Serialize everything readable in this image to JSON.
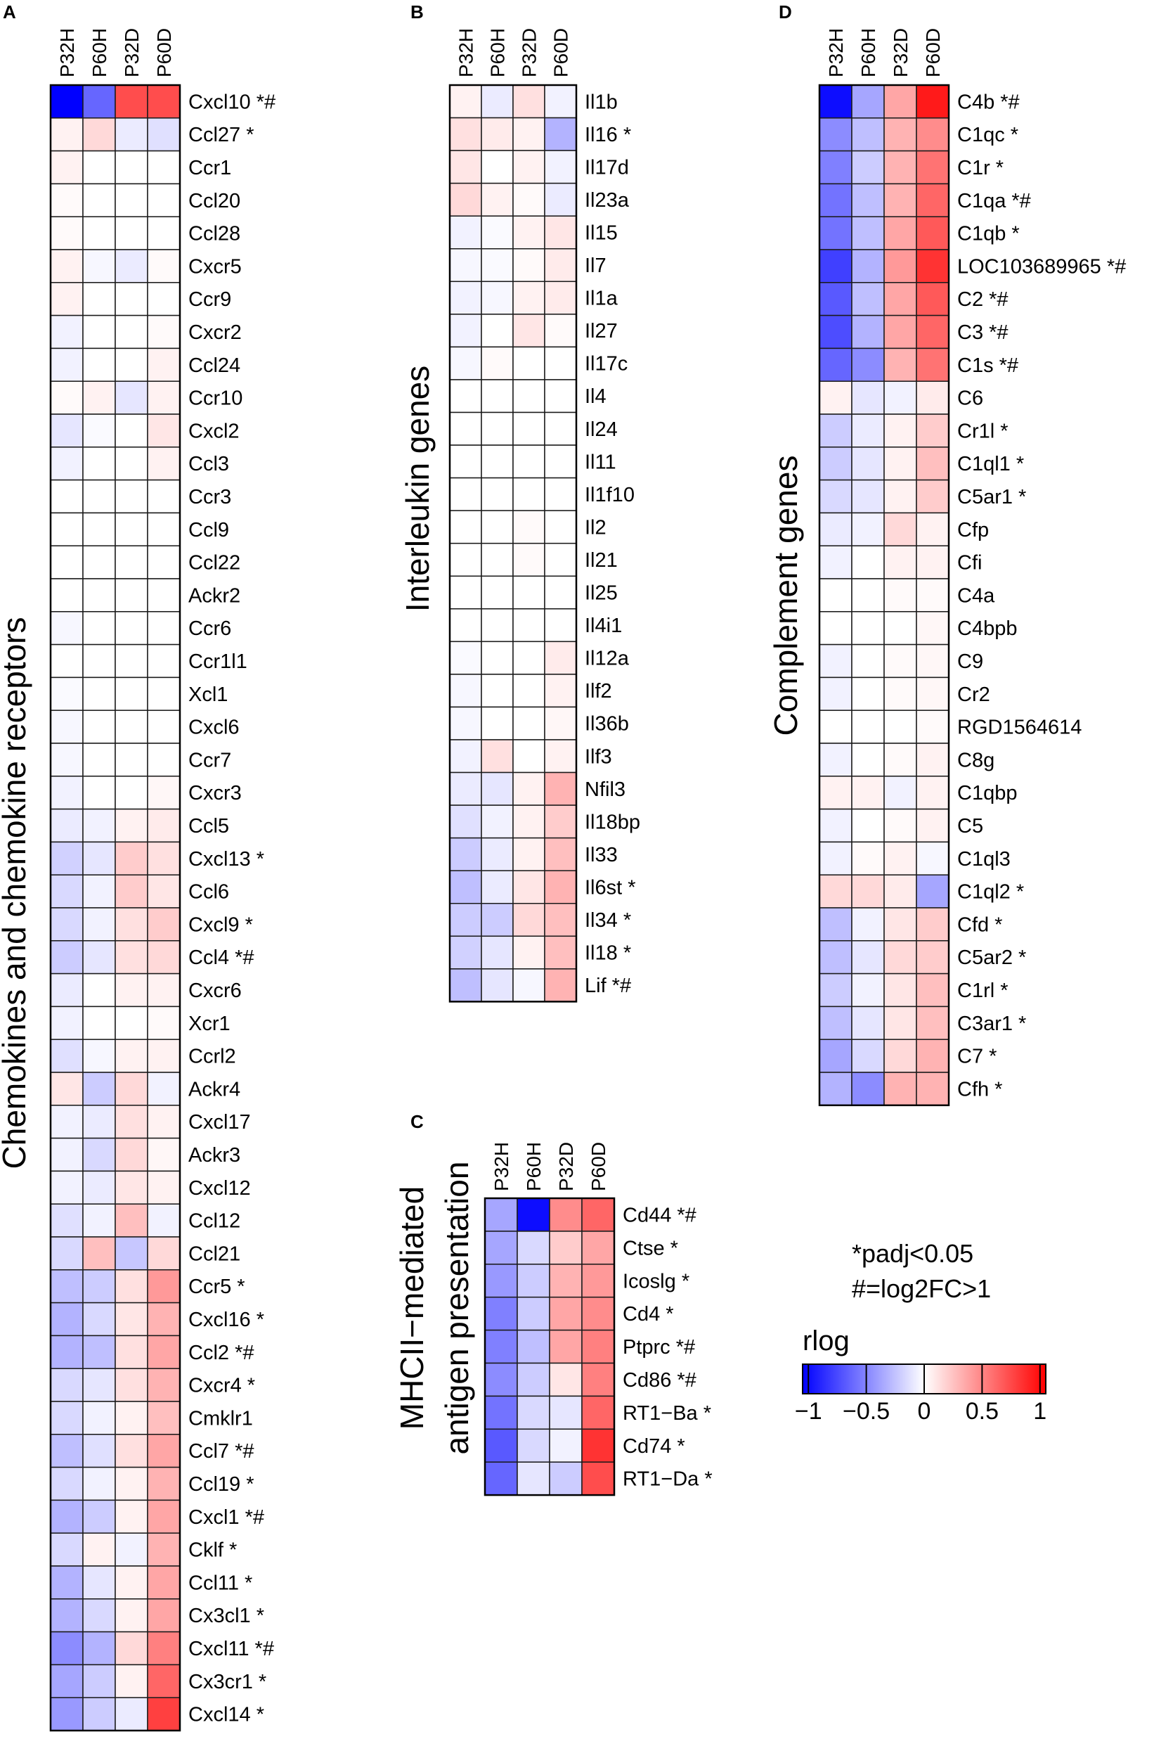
{
  "figure": {
    "legend": {
      "title": "rlog",
      "ticks": [
        "−1",
        "−0.5",
        "0",
        "0.5",
        "1"
      ],
      "range": [
        -1.05,
        1.05
      ],
      "tick_values": [
        -1,
        -0.5,
        0,
        0.5,
        1
      ],
      "colors": {
        "low": "#0000ff",
        "mid": "#ffffff",
        "high": "#ff0000"
      }
    },
    "notes": [
      "*padj<0.05",
      "#=log2FC>1"
    ]
  },
  "chart_data": [
    {
      "type": "heatmap",
      "panel": "A",
      "title": "Chemokines and chemokine receptors",
      "columns": [
        "P32H",
        "P60H",
        "P32D",
        "P60D"
      ],
      "rows": [
        "Cxcl10 *#",
        "Ccl27 *",
        "Ccr1",
        "Ccl20",
        "Ccl28",
        "Cxcr5",
        "Ccr9",
        "Cxcr2",
        "Ccl24",
        "Ccr10",
        "Cxcl2",
        "Ccl3",
        "Ccr3",
        "Ccl9",
        "Ccl22",
        "Ackr2",
        "Ccr6",
        "Ccr1l1",
        "Xcl1",
        "Cxcl6",
        "Ccr7",
        "Cxcr3",
        "Ccl5",
        "Cxcl13 *",
        "Ccl6",
        "Cxcl9 *",
        "Ccl4 *#",
        "Cxcr6",
        "Xcr1",
        "Ccrl2",
        "Ackr4",
        "Cxcl17",
        "Ackr3",
        "Cxcl12",
        "Ccl12",
        "Ccl21",
        "Ccr5 *",
        "Cxcl16 *",
        "Ccl2 *#",
        "Cxcr4 *",
        "Cmklr1",
        "Ccl7 *#",
        "Ccl19 *",
        "Cxcl1 *#",
        "Cklf *",
        "Ccl11 *",
        "Cx3cl1 *",
        "Cxcl11 *#",
        "Cx3cr1 *",
        "Cxcl14 *"
      ],
      "values": [
        [
          -1.0,
          -0.6,
          0.7,
          0.7
        ],
        [
          0.05,
          0.15,
          -0.08,
          -0.12
        ],
        [
          0.05,
          0.0,
          0.0,
          0.0
        ],
        [
          0.02,
          0.0,
          0.0,
          0.0
        ],
        [
          0.02,
          0.0,
          0.0,
          0.0
        ],
        [
          0.05,
          -0.03,
          -0.08,
          0.02
        ],
        [
          0.05,
          0.0,
          0.0,
          0.0
        ],
        [
          -0.05,
          0.0,
          0.0,
          0.02
        ],
        [
          -0.05,
          0.0,
          0.0,
          0.05
        ],
        [
          0.02,
          0.05,
          -0.1,
          0.05
        ],
        [
          -0.1,
          -0.02,
          0.0,
          0.1
        ],
        [
          -0.05,
          0.0,
          0.0,
          0.05
        ],
        [
          0.0,
          0.0,
          0.0,
          0.0
        ],
        [
          0.0,
          0.0,
          0.0,
          0.0
        ],
        [
          0.0,
          0.0,
          0.0,
          0.0
        ],
        [
          0.0,
          0.0,
          0.0,
          0.0
        ],
        [
          -0.03,
          0.0,
          0.0,
          0.0
        ],
        [
          0.0,
          0.0,
          0.0,
          0.0
        ],
        [
          -0.02,
          0.0,
          0.0,
          0.0
        ],
        [
          -0.03,
          0.0,
          0.0,
          0.0
        ],
        [
          -0.03,
          0.0,
          0.0,
          0.0
        ],
        [
          -0.05,
          0.0,
          0.0,
          0.03
        ],
        [
          -0.08,
          -0.05,
          0.05,
          0.08
        ],
        [
          -0.18,
          -0.1,
          0.2,
          0.12
        ],
        [
          -0.15,
          -0.05,
          0.2,
          0.1
        ],
        [
          -0.15,
          -0.05,
          0.12,
          0.2
        ],
        [
          -0.2,
          -0.1,
          0.12,
          0.15
        ],
        [
          -0.08,
          0.0,
          0.05,
          0.05
        ],
        [
          -0.05,
          0.0,
          0.0,
          0.02
        ],
        [
          -0.12,
          -0.03,
          0.05,
          0.05
        ],
        [
          0.1,
          -0.2,
          0.15,
          -0.05
        ],
        [
          -0.05,
          -0.08,
          0.12,
          0.05
        ],
        [
          -0.05,
          -0.15,
          0.15,
          0.03
        ],
        [
          -0.05,
          -0.08,
          0.1,
          0.05
        ],
        [
          -0.12,
          -0.05,
          0.25,
          -0.05
        ],
        [
          -0.15,
          0.25,
          -0.22,
          0.15
        ],
        [
          -0.25,
          -0.2,
          0.12,
          0.4
        ],
        [
          -0.3,
          -0.15,
          0.1,
          0.3
        ],
        [
          -0.3,
          -0.25,
          0.12,
          0.35
        ],
        [
          -0.15,
          -0.1,
          0.12,
          0.3
        ],
        [
          -0.15,
          -0.05,
          0.05,
          0.25
        ],
        [
          -0.25,
          -0.12,
          0.12,
          0.35
        ],
        [
          -0.15,
          -0.05,
          0.05,
          0.3
        ],
        [
          -0.3,
          -0.2,
          0.05,
          0.35
        ],
        [
          -0.15,
          0.05,
          -0.05,
          0.3
        ],
        [
          -0.3,
          -0.1,
          0.05,
          0.35
        ],
        [
          -0.3,
          -0.15,
          0.05,
          0.35
        ],
        [
          -0.45,
          -0.3,
          0.15,
          0.5
        ],
        [
          -0.35,
          -0.2,
          0.05,
          0.6
        ],
        [
          -0.4,
          -0.2,
          -0.08,
          0.75
        ]
      ]
    },
    {
      "type": "heatmap",
      "panel": "B",
      "title": "Interleukin genes",
      "columns": [
        "P32H",
        "P60H",
        "P32D",
        "P60D"
      ],
      "rows": [
        "Il1b",
        "Il16 *",
        "Il17d",
        "Il23a",
        "Il15",
        "Il7",
        "Il1a",
        "Il27",
        "Il17c",
        "Il4",
        "Il24",
        "Il11",
        "Il1f10",
        "Il2",
        "Il21",
        "Il25",
        "Il4i1",
        "Il12a",
        "Ilf2",
        "Il36b",
        "Ilf3",
        "Nfil3",
        "Il18bp",
        "Il33",
        "Il6st *",
        "Il34 *",
        "Il18 *",
        "Lif *#"
      ],
      "values": [
        [
          0.05,
          -0.08,
          0.12,
          -0.05
        ],
        [
          0.12,
          0.08,
          0.05,
          -0.3
        ],
        [
          0.1,
          0.0,
          0.05,
          -0.05
        ],
        [
          0.15,
          0.05,
          0.02,
          -0.08
        ],
        [
          -0.05,
          -0.02,
          0.05,
          0.1
        ],
        [
          -0.03,
          -0.02,
          0.02,
          0.08
        ],
        [
          -0.05,
          -0.03,
          0.05,
          0.08
        ],
        [
          -0.05,
          0.0,
          0.1,
          0.02
        ],
        [
          -0.03,
          0.02,
          0.0,
          0.0
        ],
        [
          0.0,
          0.0,
          0.0,
          0.0
        ],
        [
          0.0,
          0.0,
          0.0,
          0.0
        ],
        [
          0.0,
          0.0,
          0.0,
          0.0
        ],
        [
          0.0,
          0.0,
          0.0,
          0.0
        ],
        [
          0.0,
          0.0,
          0.02,
          0.0
        ],
        [
          0.0,
          0.0,
          0.02,
          0.0
        ],
        [
          0.0,
          0.0,
          0.0,
          0.0
        ],
        [
          0.0,
          0.0,
          0.0,
          0.0
        ],
        [
          -0.02,
          0.0,
          0.0,
          0.08
        ],
        [
          -0.03,
          0.0,
          0.0,
          0.05
        ],
        [
          -0.03,
          0.0,
          0.0,
          0.03
        ],
        [
          -0.05,
          0.12,
          0.0,
          0.05
        ],
        [
          -0.08,
          -0.1,
          0.05,
          0.3
        ],
        [
          -0.12,
          -0.05,
          0.05,
          0.2
        ],
        [
          -0.2,
          -0.08,
          0.05,
          0.25
        ],
        [
          -0.25,
          -0.08,
          0.1,
          0.3
        ],
        [
          -0.2,
          -0.2,
          0.15,
          0.25
        ],
        [
          -0.18,
          -0.1,
          0.05,
          0.25
        ],
        [
          -0.25,
          -0.1,
          -0.03,
          0.3
        ]
      ]
    },
    {
      "type": "heatmap",
      "panel": "C",
      "title": "MHCII−mediated antigen presentation",
      "title_lines": [
        "MHCII−mediated",
        "antigen presentation"
      ],
      "columns": [
        "P32H",
        "P60H",
        "P32D",
        "P60D"
      ],
      "rows": [
        "Cd44 *#",
        "Ctse *",
        "Icoslg *",
        "Cd4 *",
        "Ptprc *#",
        "Cd86 *#",
        "RT1−Ba *",
        "Cd74 *",
        "RT1−Da *"
      ],
      "values": [
        [
          -0.35,
          -0.95,
          0.45,
          0.6
        ],
        [
          -0.35,
          -0.15,
          0.2,
          0.35
        ],
        [
          -0.4,
          -0.2,
          0.3,
          0.4
        ],
        [
          -0.5,
          -0.2,
          0.35,
          0.45
        ],
        [
          -0.5,
          -0.25,
          0.35,
          0.5
        ],
        [
          -0.45,
          -0.2,
          0.1,
          0.5
        ],
        [
          -0.55,
          -0.15,
          -0.1,
          0.6
        ],
        [
          -0.65,
          -0.15,
          -0.05,
          0.8
        ],
        [
          -0.6,
          -0.1,
          -0.2,
          0.7
        ]
      ]
    },
    {
      "type": "heatmap",
      "panel": "D",
      "title": "Complement genes",
      "columns": [
        "P32H",
        "P60H",
        "P32D",
        "P60D"
      ],
      "rows": [
        "C4b *#",
        "C1qc *",
        "C1r *",
        "C1qa *#",
        "C1qb *",
        "LOC103689965 *#",
        "C2 *#",
        "C3 *#",
        "C1s *#",
        "C6",
        "Cr1l *",
        "C1ql1 *",
        "C5ar1 *",
        "Cfp",
        "Cfi",
        "C4a",
        "C4bpb",
        "C9",
        "Cr2",
        "RGD1564614",
        "C8g",
        "C1qbp",
        "C5",
        "C1ql3",
        "C1ql2 *",
        "Cfd *",
        "C5ar2 *",
        "C1rl *",
        "C3ar1 *",
        "C7 *",
        "Cfh *"
      ],
      "values": [
        [
          -0.95,
          -0.35,
          0.35,
          0.9
        ],
        [
          -0.45,
          -0.25,
          0.3,
          0.45
        ],
        [
          -0.5,
          -0.2,
          0.3,
          0.55
        ],
        [
          -0.55,
          -0.25,
          0.3,
          0.6
        ],
        [
          -0.55,
          -0.25,
          0.35,
          0.65
        ],
        [
          -0.75,
          -0.3,
          0.4,
          0.8
        ],
        [
          -0.65,
          -0.25,
          0.35,
          0.65
        ],
        [
          -0.7,
          -0.3,
          0.35,
          0.6
        ],
        [
          -0.6,
          -0.45,
          0.3,
          0.55
        ],
        [
          0.05,
          -0.1,
          -0.05,
          0.08
        ],
        [
          -0.2,
          -0.08,
          0.05,
          0.2
        ],
        [
          -0.2,
          -0.1,
          0.05,
          0.25
        ],
        [
          -0.15,
          -0.1,
          0.05,
          0.2
        ],
        [
          -0.08,
          -0.05,
          0.15,
          0.05
        ],
        [
          -0.05,
          0.0,
          0.05,
          0.05
        ],
        [
          0.0,
          0.0,
          0.02,
          0.02
        ],
        [
          0.0,
          0.0,
          0.0,
          0.03
        ],
        [
          -0.05,
          0.0,
          0.02,
          0.03
        ],
        [
          -0.05,
          0.0,
          0.02,
          0.03
        ],
        [
          0.0,
          0.0,
          0.0,
          0.02
        ],
        [
          -0.05,
          0.0,
          0.02,
          0.05
        ],
        [
          0.05,
          0.05,
          -0.05,
          0.05
        ],
        [
          -0.05,
          0.0,
          0.02,
          0.05
        ],
        [
          -0.05,
          0.02,
          0.05,
          -0.03
        ],
        [
          0.15,
          0.15,
          0.08,
          -0.35
        ],
        [
          -0.25,
          -0.05,
          0.1,
          0.2
        ],
        [
          -0.25,
          -0.1,
          0.15,
          0.2
        ],
        [
          -0.2,
          -0.05,
          0.1,
          0.25
        ],
        [
          -0.25,
          -0.1,
          0.1,
          0.25
        ],
        [
          -0.35,
          -0.15,
          0.15,
          0.3
        ],
        [
          -0.3,
          -0.45,
          0.3,
          0.3
        ]
      ]
    }
  ]
}
